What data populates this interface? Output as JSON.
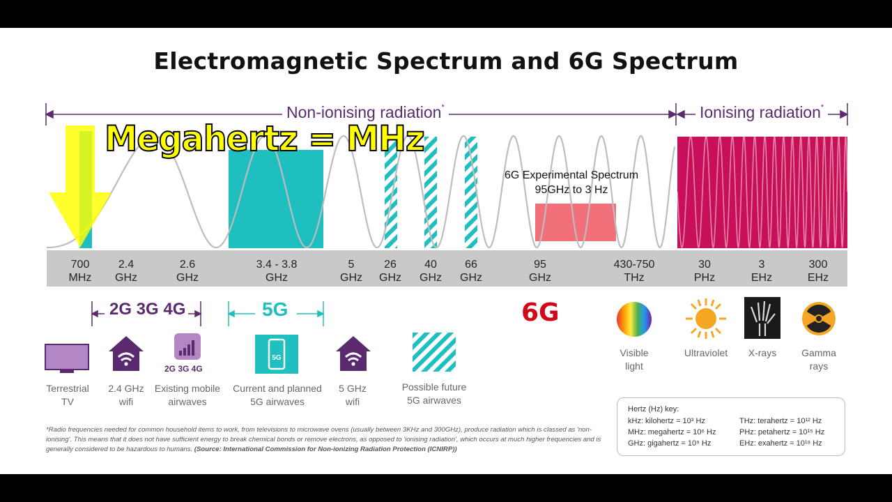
{
  "title": "Electromagnetic Spectrum and 6G Spectrum",
  "ranges": {
    "non_ionising": "Non-ionising radiation",
    "ionising": "Ionising radiation",
    "marker": "*"
  },
  "overlay_text": "Megahertz = MHz",
  "experimental": {
    "line1": "6G Experimental Spectrum",
    "line2": "95GHz to 3 Hz"
  },
  "frequencies": [
    {
      "top": "700",
      "bottom": "MHz"
    },
    {
      "top": "2.4",
      "bottom": "GHz"
    },
    {
      "top": "2.6",
      "bottom": "GHz"
    },
    {
      "top": "3.4 - 3.8",
      "bottom": "GHz"
    },
    {
      "top": "5",
      "bottom": "GHz"
    },
    {
      "top": "26",
      "bottom": "GHz"
    },
    {
      "top": "40",
      "bottom": "GHz"
    },
    {
      "top": "66",
      "bottom": "GHz"
    },
    {
      "top": "95",
      "bottom": "GHz"
    },
    {
      "top": "430-750",
      "bottom": "THz"
    },
    {
      "top": "30",
      "bottom": "PHz"
    },
    {
      "top": "3",
      "bottom": "EHz"
    },
    {
      "top": "300",
      "bottom": "EHz"
    }
  ],
  "generations": {
    "g234": "2G 3G 4G",
    "g5": "5G",
    "g6": "6G",
    "icon_small": "2G 3G 4G",
    "phone_badge": "5G"
  },
  "captions": {
    "tv": [
      "Terrestrial",
      "TV"
    ],
    "wifi24": [
      "2.4 GHz",
      "wifi"
    ],
    "mobile": [
      "Existing mobile",
      "airwaves"
    ],
    "g5_current": [
      "Current and planned",
      "5G airwaves"
    ],
    "wifi5": [
      "5 GHz",
      "wifi"
    ],
    "g5_future": [
      "Possible future",
      "5G airwaves"
    ],
    "visible": [
      "Visible",
      "light"
    ],
    "uv": [
      "Ultraviolet"
    ],
    "xray": [
      "X-rays"
    ],
    "gamma": [
      "Gamma",
      "rays"
    ]
  },
  "footnote": {
    "text": "*Radio frequencies needed for common household items to work, from televisions to microwave ovens (usually between 3KHz and 300GHz), produce radiation which is classed as 'non-ionising'. This means that it does not have sufficient energy to break chemical bonds or remove electrons, as opposed to 'ionising radiation', which occurs at much higher frequencies and is generally considered to be hazardous to humans. ",
    "source": "(Source: International Commission for Non-ionizing Radiation Protection (ICNIRP))"
  },
  "hertz_key": {
    "title": "Hertz (Hz) key:",
    "items": [
      "kHz: kilohertz = 10³ Hz",
      "MHz: megahertz = 10⁶ Hz",
      "GHz: gigahertz = 10⁹ Hz",
      "THz: terahertz = 10¹² Hz",
      "PHz: petahertz = 10¹⁵ Hz",
      "EHz: exahertz = 10¹⁸ Hz"
    ]
  },
  "colors": {
    "purple": "#5b2a6e",
    "teal": "#1fbfbf",
    "magenta": "#c8105a",
    "red": "#d0081a",
    "pink": "#f2707a",
    "grey_band": "#c9c9c9",
    "yellow": "#ffff00"
  },
  "icons": [
    "tv-icon",
    "wifi-house-icon",
    "signal-bars-icon",
    "phone-5g-icon",
    "wifi-house-icon",
    "striped-square-icon",
    "rainbow-circle-icon",
    "sun-icon",
    "xray-hand-icon",
    "radiation-icon",
    "down-arrow-icon"
  ]
}
